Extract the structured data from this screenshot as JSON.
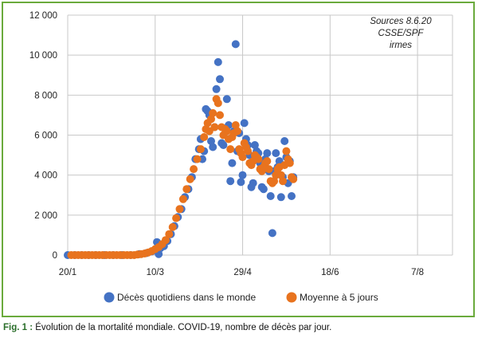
{
  "sources": {
    "line1": "Sources 8.6.20",
    "line2": "CSSE/SPF",
    "line3": "irmes"
  },
  "caption": {
    "label": "Fig. 1 :",
    "text": "Évolution de la mortalité mondiale. COVID-19, nombre de décès par jour."
  },
  "colors": {
    "frame": "#6aaa3c",
    "daily": "#4472c4",
    "avg": "#e8731e",
    "grid": "#c8c8c8"
  },
  "chart_data": {
    "type": "scatter",
    "title": "",
    "xlabel": "",
    "ylabel": "",
    "x_start_date": "2020-01-20",
    "x_ticks": [
      "20/1",
      "10/3",
      "29/4",
      "18/6",
      "7/8"
    ],
    "ylim": [
      0,
      12000
    ],
    "y_ticks": [
      0,
      2000,
      4000,
      6000,
      8000,
      10000,
      12000
    ],
    "y_tick_labels": [
      "0",
      "2 000",
      "4 000",
      "6 000",
      "8 000",
      "10 000",
      "12 000"
    ],
    "grid": true,
    "legend_position": "bottom",
    "series": [
      {
        "name": "Décès quotidiens dans le monde",
        "marker": "circle",
        "points": [
          [
            "2020-01-20",
            0
          ],
          [
            "2020-01-24",
            0
          ],
          [
            "2020-01-28",
            0
          ],
          [
            "2020-02-01",
            0
          ],
          [
            "2020-02-05",
            0
          ],
          [
            "2020-02-10",
            0
          ],
          [
            "2020-02-15",
            0
          ],
          [
            "2020-02-20",
            0
          ],
          [
            "2020-02-25",
            0
          ],
          [
            "2020-03-01",
            50
          ],
          [
            "2020-03-05",
            100
          ],
          [
            "2020-03-08",
            180
          ],
          [
            "2020-03-10",
            250
          ],
          [
            "2020-03-11",
            650
          ],
          [
            "2020-03-12",
            50
          ],
          [
            "2020-03-13",
            350
          ],
          [
            "2020-03-15",
            450
          ],
          [
            "2020-03-17",
            700
          ],
          [
            "2020-03-19",
            1050
          ],
          [
            "2020-03-21",
            1450
          ],
          [
            "2020-03-23",
            1900
          ],
          [
            "2020-03-25",
            2300
          ],
          [
            "2020-03-27",
            2900
          ],
          [
            "2020-03-29",
            3300
          ],
          [
            "2020-03-31",
            3900
          ],
          [
            "2020-04-02",
            4800
          ],
          [
            "2020-04-04",
            5300
          ],
          [
            "2020-04-05",
            5800
          ],
          [
            "2020-04-06",
            4800
          ],
          [
            "2020-04-07",
            5200
          ],
          [
            "2020-04-08",
            7300
          ],
          [
            "2020-04-09",
            7200
          ],
          [
            "2020-04-10",
            7000
          ],
          [
            "2020-04-11",
            5700
          ],
          [
            "2020-04-12",
            5400
          ],
          [
            "2020-04-13",
            6400
          ],
          [
            "2020-04-14",
            8300
          ],
          [
            "2020-04-15",
            9650
          ],
          [
            "2020-04-16",
            8800
          ],
          [
            "2020-04-17",
            5600
          ],
          [
            "2020-04-18",
            5500
          ],
          [
            "2020-04-20",
            7800
          ],
          [
            "2020-04-21",
            6500
          ],
          [
            "2020-04-22",
            3700
          ],
          [
            "2020-04-23",
            4600
          ],
          [
            "2020-04-24",
            6200
          ],
          [
            "2020-04-25",
            10550
          ],
          [
            "2020-04-26",
            5200
          ],
          [
            "2020-04-27",
            6100
          ],
          [
            "2020-04-28",
            3650
          ],
          [
            "2020-04-29",
            4000
          ],
          [
            "2020-04-30",
            6600
          ],
          [
            "2020-05-01",
            5800
          ],
          [
            "2020-05-02",
            5500
          ],
          [
            "2020-05-03",
            5000
          ],
          [
            "2020-05-04",
            3400
          ],
          [
            "2020-05-05",
            3600
          ],
          [
            "2020-05-06",
            5500
          ],
          [
            "2020-05-07",
            5200
          ],
          [
            "2020-05-08",
            5100
          ],
          [
            "2020-05-09",
            4600
          ],
          [
            "2020-05-10",
            3400
          ],
          [
            "2020-05-11",
            3300
          ],
          [
            "2020-05-12",
            4800
          ],
          [
            "2020-05-13",
            5100
          ],
          [
            "2020-05-14",
            4200
          ],
          [
            "2020-05-15",
            2950
          ],
          [
            "2020-05-16",
            1100
          ],
          [
            "2020-05-17",
            4200
          ],
          [
            "2020-05-18",
            5100
          ],
          [
            "2020-05-19",
            4400
          ],
          [
            "2020-05-20",
            4700
          ],
          [
            "2020-05-21",
            2900
          ],
          [
            "2020-05-22",
            3900
          ],
          [
            "2020-05-23",
            5700
          ],
          [
            "2020-05-24",
            4900
          ],
          [
            "2020-05-25",
            3600
          ],
          [
            "2020-05-26",
            4700
          ],
          [
            "2020-05-27",
            2950
          ],
          [
            "2020-05-28",
            3900
          ]
        ]
      },
      {
        "name": "Moyenne à 5 jours",
        "marker": "circle",
        "points": [
          [
            "2020-01-22",
            0
          ],
          [
            "2020-01-24",
            0
          ],
          [
            "2020-01-26",
            0
          ],
          [
            "2020-01-28",
            0
          ],
          [
            "2020-01-30",
            0
          ],
          [
            "2020-02-01",
            0
          ],
          [
            "2020-02-03",
            0
          ],
          [
            "2020-02-05",
            0
          ],
          [
            "2020-02-07",
            0
          ],
          [
            "2020-02-09",
            0
          ],
          [
            "2020-02-11",
            0
          ],
          [
            "2020-02-13",
            0
          ],
          [
            "2020-02-15",
            0
          ],
          [
            "2020-02-17",
            0
          ],
          [
            "2020-02-19",
            0
          ],
          [
            "2020-02-21",
            0
          ],
          [
            "2020-02-23",
            0
          ],
          [
            "2020-02-25",
            0
          ],
          [
            "2020-02-27",
            0
          ],
          [
            "2020-02-29",
            30
          ],
          [
            "2020-03-02",
            50
          ],
          [
            "2020-03-04",
            80
          ],
          [
            "2020-03-06",
            130
          ],
          [
            "2020-03-08",
            200
          ],
          [
            "2020-03-10",
            300
          ],
          [
            "2020-03-12",
            400
          ],
          [
            "2020-03-14",
            550
          ],
          [
            "2020-03-16",
            750
          ],
          [
            "2020-03-18",
            1050
          ],
          [
            "2020-03-20",
            1400
          ],
          [
            "2020-03-22",
            1850
          ],
          [
            "2020-03-24",
            2300
          ],
          [
            "2020-03-26",
            2800
          ],
          [
            "2020-03-28",
            3300
          ],
          [
            "2020-03-30",
            3800
          ],
          [
            "2020-04-01",
            4300
          ],
          [
            "2020-04-03",
            4800
          ],
          [
            "2020-04-05",
            5300
          ],
          [
            "2020-04-07",
            5900
          ],
          [
            "2020-04-08",
            6300
          ],
          [
            "2020-04-09",
            6600
          ],
          [
            "2020-04-10",
            6200
          ],
          [
            "2020-04-11",
            6800
          ],
          [
            "2020-04-12",
            7100
          ],
          [
            "2020-04-13",
            6400
          ],
          [
            "2020-04-14",
            7800
          ],
          [
            "2020-04-15",
            7600
          ],
          [
            "2020-04-16",
            7000
          ],
          [
            "2020-04-17",
            6400
          ],
          [
            "2020-04-18",
            6000
          ],
          [
            "2020-04-19",
            6300
          ],
          [
            "2020-04-20",
            6200
          ],
          [
            "2020-04-21",
            5800
          ],
          [
            "2020-04-22",
            5300
          ],
          [
            "2020-04-23",
            5900
          ],
          [
            "2020-04-24",
            6100
          ],
          [
            "2020-04-25",
            6500
          ],
          [
            "2020-04-26",
            6200
          ],
          [
            "2020-04-27",
            5300
          ],
          [
            "2020-04-28",
            5100
          ],
          [
            "2020-04-29",
            4900
          ],
          [
            "2020-04-30",
            5600
          ],
          [
            "2020-05-01",
            5400
          ],
          [
            "2020-05-02",
            5200
          ],
          [
            "2020-05-03",
            4600
          ],
          [
            "2020-05-04",
            4500
          ],
          [
            "2020-05-05",
            4700
          ],
          [
            "2020-05-06",
            5000
          ],
          [
            "2020-05-07",
            4900
          ],
          [
            "2020-05-08",
            4800
          ],
          [
            "2020-05-09",
            4300
          ],
          [
            "2020-05-10",
            4200
          ],
          [
            "2020-05-11",
            4400
          ],
          [
            "2020-05-12",
            4600
          ],
          [
            "2020-05-13",
            4700
          ],
          [
            "2020-05-14",
            4300
          ],
          [
            "2020-05-15",
            3700
          ],
          [
            "2020-05-16",
            3600
          ],
          [
            "2020-05-17",
            3700
          ],
          [
            "2020-05-18",
            4000
          ],
          [
            "2020-05-19",
            4300
          ],
          [
            "2020-05-20",
            4400
          ],
          [
            "2020-05-21",
            4000
          ],
          [
            "2020-05-22",
            3700
          ],
          [
            "2020-05-23",
            4500
          ],
          [
            "2020-05-24",
            5200
          ],
          [
            "2020-05-25",
            4800
          ],
          [
            "2020-05-26",
            4600
          ],
          [
            "2020-05-27",
            3900
          ],
          [
            "2020-05-28",
            3800
          ]
        ]
      }
    ]
  }
}
